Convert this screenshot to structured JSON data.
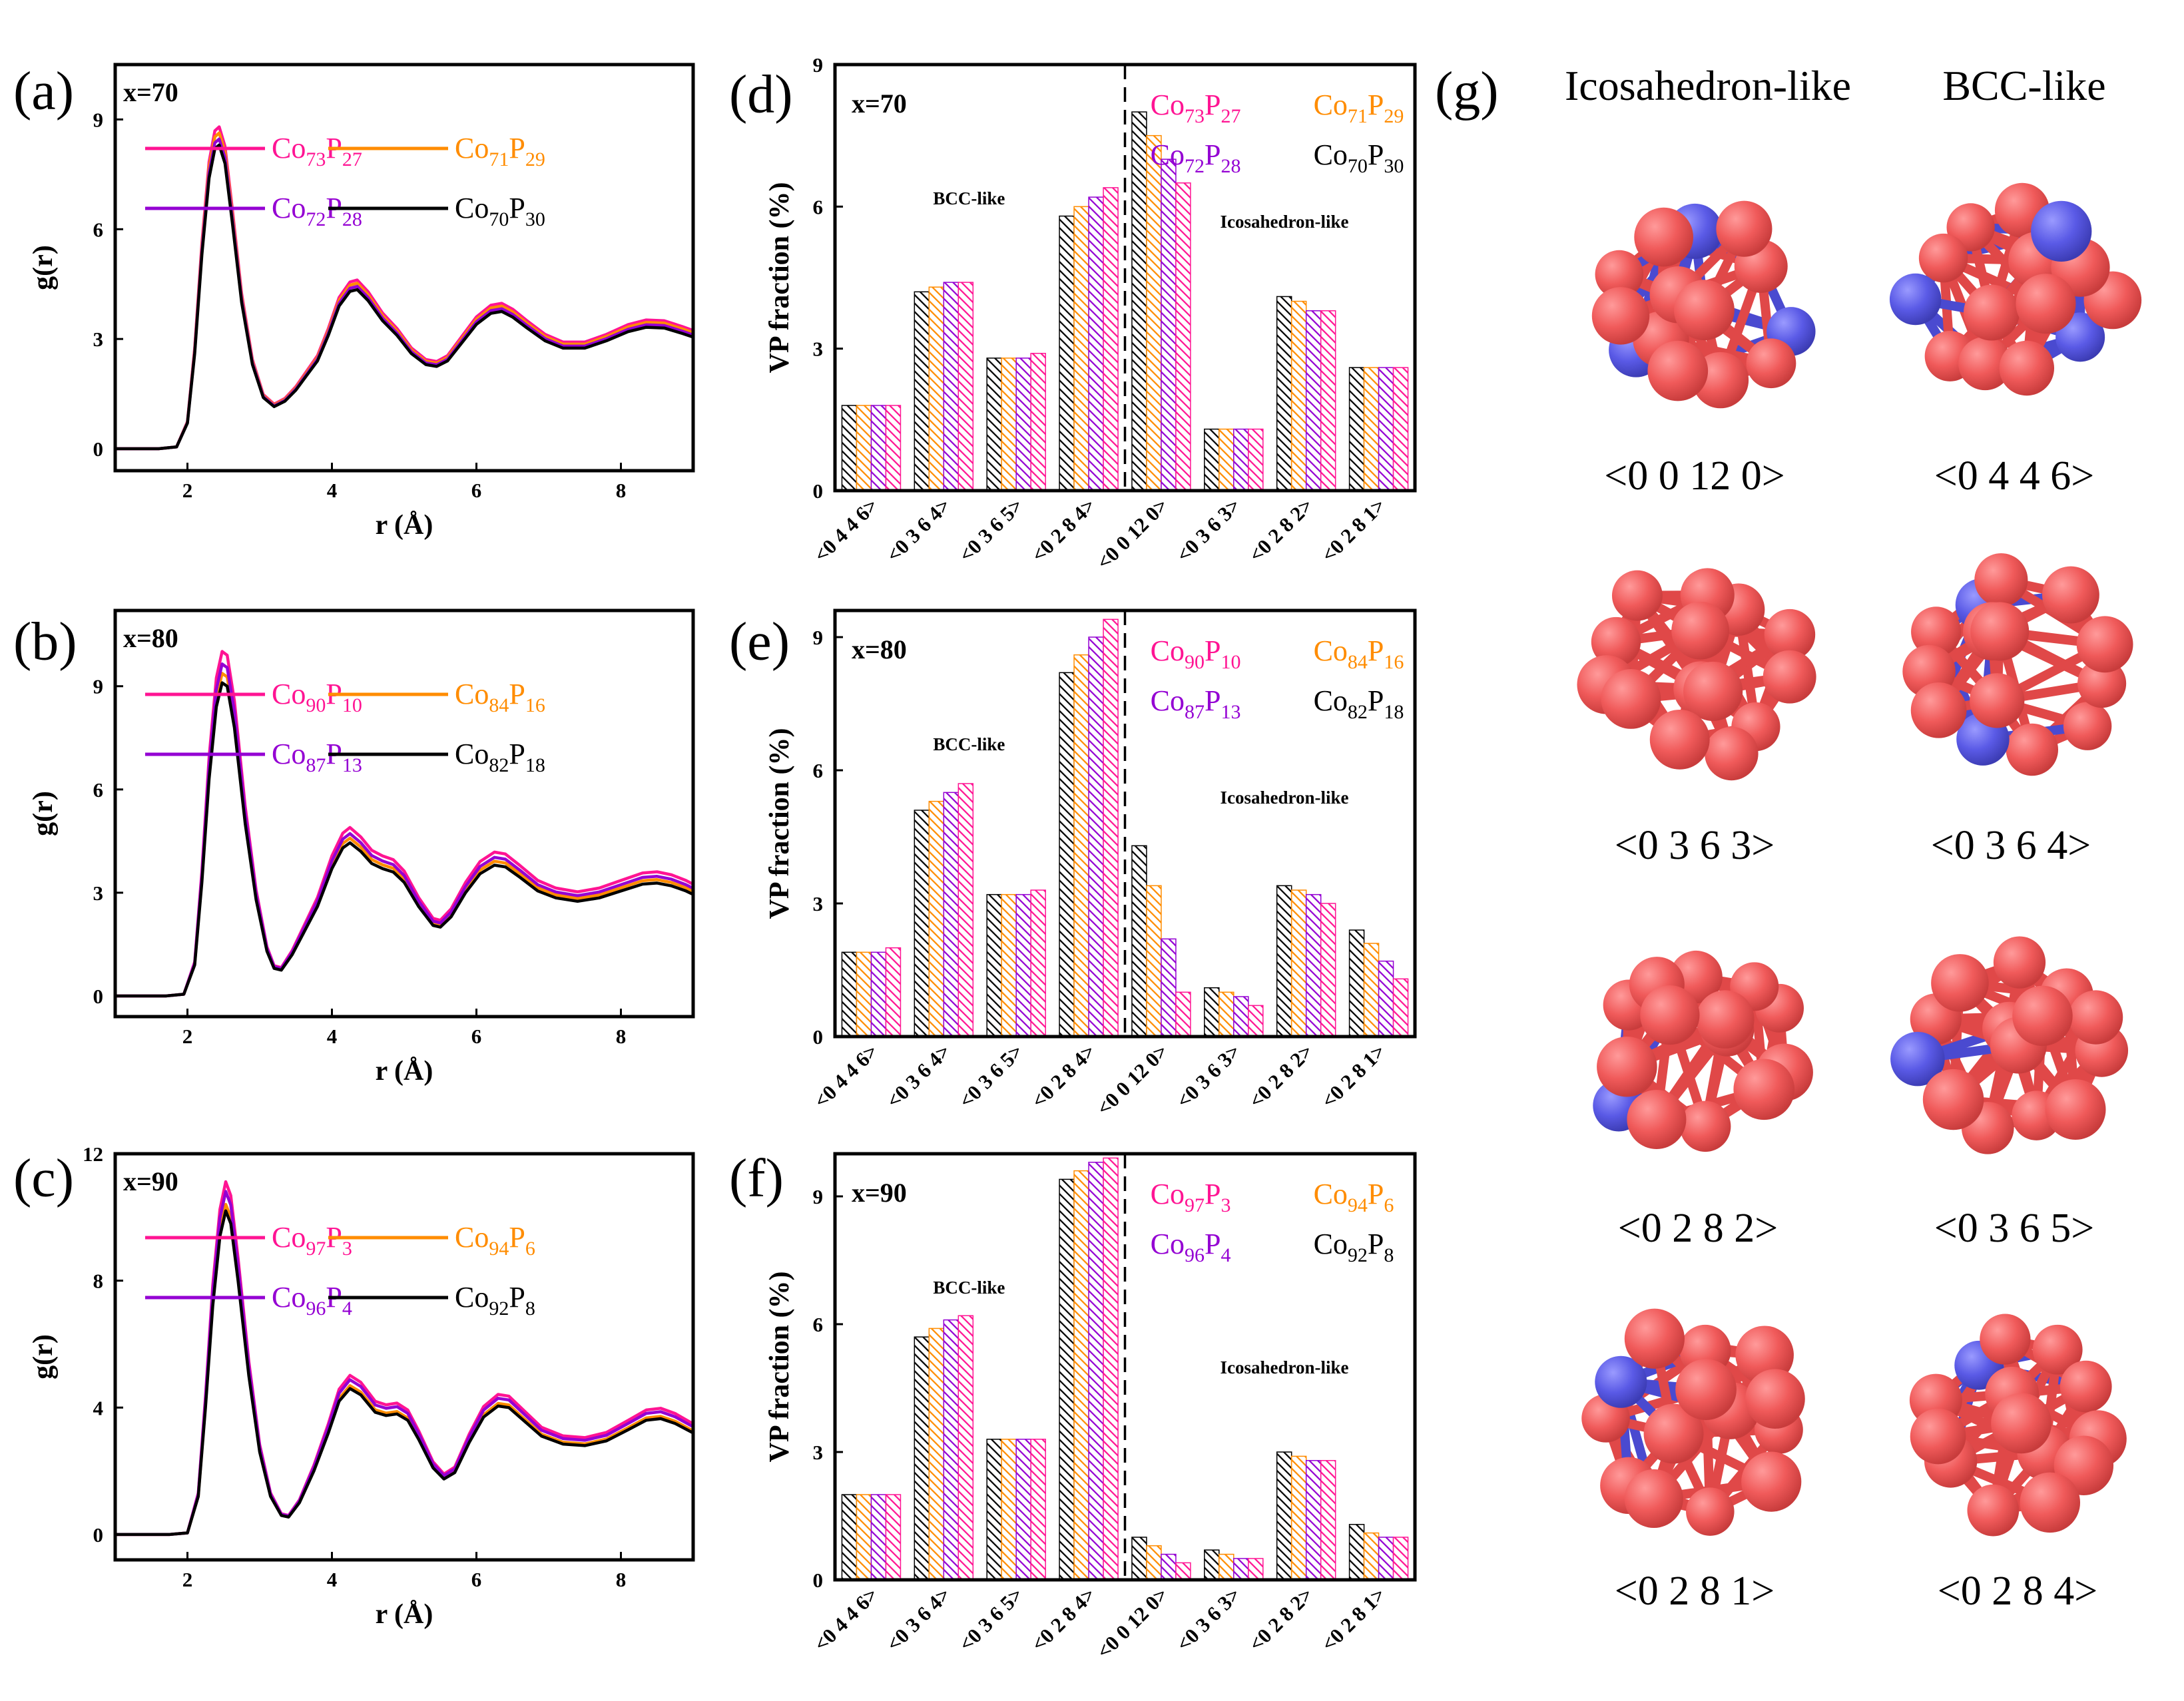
{
  "colors": {
    "pink": "#ff1493",
    "orange": "#ff8c00",
    "purple": "#9400d3",
    "black": "#000000",
    "cobalt_atom": "#f05a5a",
    "phosphorus_atom": "#5a5ae6"
  },
  "panel_g": {
    "label": "(g)",
    "col_titles": [
      "Icosahedron-like",
      "BCC-like"
    ],
    "clusters": [
      {
        "title": "<0 0 12 0>",
        "p_atoms": 3
      },
      {
        "title": "<0 4 4 6>",
        "p_atoms": 3
      },
      {
        "title": "<0 3 6 3>",
        "p_atoms": 0
      },
      {
        "title": "<0 3 6 4>",
        "p_atoms": 2
      },
      {
        "title": "<0 2 8 2>",
        "p_atoms": 1
      },
      {
        "title": "<0 3 6 5>",
        "p_atoms": 1
      },
      {
        "title": "<0 2 8 1>",
        "p_atoms": 1
      },
      {
        "title": "<0 2 8 4>",
        "p_atoms": 1
      }
    ]
  },
  "chart_data": [
    {
      "id": "a",
      "type": "line",
      "label": "(a)",
      "annotation": "x=70",
      "xlabel": "r (Å)",
      "ylabel": "g(r)",
      "xlim": [
        1,
        9
      ],
      "ylim": [
        -0.6,
        10.5
      ],
      "xticks": [
        2,
        4,
        6,
        8
      ],
      "yticks": [
        0,
        3,
        6,
        9
      ],
      "series": [
        {
          "name": "Co73P27",
          "base": "Co",
          "sub1": "73",
          "el2": "P",
          "sub2": "27",
          "color": "pink",
          "scale": 1.06
        },
        {
          "name": "Co71P29",
          "base": "Co",
          "sub1": "71",
          "el2": "P",
          "sub2": "29",
          "color": "orange",
          "scale": 1.04
        },
        {
          "name": "Co72P28",
          "base": "Co",
          "sub1": "72",
          "el2": "P",
          "sub2": "28",
          "color": "purple",
          "scale": 1.02
        },
        {
          "name": "Co70P30",
          "base": "Co",
          "sub1": "70",
          "el2": "P",
          "sub2": "30",
          "color": "black",
          "scale": 1.0
        }
      ],
      "curve": [
        [
          1,
          0
        ],
        [
          1.6,
          0
        ],
        [
          1.85,
          0.05
        ],
        [
          2.0,
          0.7
        ],
        [
          2.1,
          2.6
        ],
        [
          2.2,
          5.3
        ],
        [
          2.3,
          7.4
        ],
        [
          2.38,
          8.2
        ],
        [
          2.44,
          8.3
        ],
        [
          2.52,
          7.8
        ],
        [
          2.62,
          6.2
        ],
        [
          2.75,
          4.0
        ],
        [
          2.9,
          2.3
        ],
        [
          3.05,
          1.4
        ],
        [
          3.2,
          1.15
        ],
        [
          3.35,
          1.3
        ],
        [
          3.5,
          1.6
        ],
        [
          3.65,
          2.0
        ],
        [
          3.8,
          2.4
        ],
        [
          3.95,
          3.1
        ],
        [
          4.1,
          3.9
        ],
        [
          4.25,
          4.3
        ],
        [
          4.35,
          4.35
        ],
        [
          4.5,
          4.05
        ],
        [
          4.7,
          3.5
        ],
        [
          4.9,
          3.1
        ],
        [
          5.1,
          2.6
        ],
        [
          5.3,
          2.3
        ],
        [
          5.45,
          2.25
        ],
        [
          5.6,
          2.4
        ],
        [
          5.8,
          2.9
        ],
        [
          6.0,
          3.4
        ],
        [
          6.2,
          3.7
        ],
        [
          6.35,
          3.75
        ],
        [
          6.5,
          3.6
        ],
        [
          6.7,
          3.3
        ],
        [
          6.95,
          2.95
        ],
        [
          7.2,
          2.75
        ],
        [
          7.5,
          2.75
        ],
        [
          7.8,
          2.95
        ],
        [
          8.1,
          3.2
        ],
        [
          8.35,
          3.32
        ],
        [
          8.6,
          3.3
        ],
        [
          8.85,
          3.15
        ],
        [
          9.0,
          3.05
        ]
      ]
    },
    {
      "id": "b",
      "type": "line",
      "label": "(b)",
      "annotation": "x=80",
      "xlabel": "r (Å)",
      "ylabel": "g(r)",
      "xlim": [
        1,
        9
      ],
      "ylim": [
        -0.6,
        11.2
      ],
      "xticks": [
        2,
        4,
        6,
        8
      ],
      "yticks": [
        0,
        3,
        6,
        9
      ],
      "series": [
        {
          "name": "Co90P10",
          "base": "Co",
          "sub1": "90",
          "el2": "P",
          "sub2": "10",
          "color": "pink",
          "scale": 1.1
        },
        {
          "name": "Co84P16",
          "base": "Co",
          "sub1": "84",
          "el2": "P",
          "sub2": "16",
          "color": "orange",
          "scale": 1.03
        },
        {
          "name": "Co87P13",
          "base": "Co",
          "sub1": "87",
          "el2": "P",
          "sub2": "13",
          "color": "purple",
          "scale": 1.06
        },
        {
          "name": "Co82P18",
          "base": "Co",
          "sub1": "82",
          "el2": "P",
          "sub2": "18",
          "color": "black",
          "scale": 1.0
        }
      ],
      "curve": [
        [
          1,
          0
        ],
        [
          1.7,
          0
        ],
        [
          1.95,
          0.05
        ],
        [
          2.1,
          0.9
        ],
        [
          2.2,
          3.3
        ],
        [
          2.3,
          6.3
        ],
        [
          2.4,
          8.4
        ],
        [
          2.48,
          9.1
        ],
        [
          2.55,
          9.0
        ],
        [
          2.65,
          7.8
        ],
        [
          2.8,
          5.0
        ],
        [
          2.95,
          2.8
        ],
        [
          3.1,
          1.3
        ],
        [
          3.2,
          0.8
        ],
        [
          3.3,
          0.75
        ],
        [
          3.45,
          1.2
        ],
        [
          3.6,
          1.8
        ],
        [
          3.8,
          2.6
        ],
        [
          4.0,
          3.7
        ],
        [
          4.15,
          4.3
        ],
        [
          4.25,
          4.45
        ],
        [
          4.4,
          4.2
        ],
        [
          4.55,
          3.85
        ],
        [
          4.7,
          3.7
        ],
        [
          4.85,
          3.6
        ],
        [
          5.0,
          3.3
        ],
        [
          5.2,
          2.6
        ],
        [
          5.4,
          2.05
        ],
        [
          5.5,
          2.0
        ],
        [
          5.65,
          2.3
        ],
        [
          5.85,
          3.0
        ],
        [
          6.05,
          3.55
        ],
        [
          6.25,
          3.8
        ],
        [
          6.4,
          3.75
        ],
        [
          6.6,
          3.45
        ],
        [
          6.85,
          3.05
        ],
        [
          7.1,
          2.85
        ],
        [
          7.4,
          2.75
        ],
        [
          7.7,
          2.85
        ],
        [
          8.0,
          3.05
        ],
        [
          8.3,
          3.25
        ],
        [
          8.5,
          3.28
        ],
        [
          8.7,
          3.2
        ],
        [
          8.9,
          3.05
        ],
        [
          9.0,
          2.95
        ]
      ]
    },
    {
      "id": "c",
      "type": "line",
      "label": "(c)",
      "annotation": "x=90",
      "xlabel": "r (Å)",
      "ylabel": "g(r)",
      "xlim": [
        1,
        9
      ],
      "ylim": [
        -0.8,
        12.0
      ],
      "xticks": [
        2,
        4,
        6,
        8
      ],
      "yticks": [
        0,
        4,
        8,
        12
      ],
      "series": [
        {
          "name": "Co97P3",
          "base": "Co",
          "sub1": "97",
          "el2": "P",
          "sub2": "3",
          "color": "pink",
          "scale": 1.09
        },
        {
          "name": "Co94P6",
          "base": "Co",
          "sub1": "94",
          "el2": "P",
          "sub2": "6",
          "color": "orange",
          "scale": 1.02
        },
        {
          "name": "Co96P4",
          "base": "Co",
          "sub1": "96",
          "el2": "P",
          "sub2": "4",
          "color": "purple",
          "scale": 1.06
        },
        {
          "name": "Co92P8",
          "base": "Co",
          "sub1": "92",
          "el2": "P",
          "sub2": "8",
          "color": "black",
          "scale": 1.0
        }
      ],
      "curve": [
        [
          1,
          0
        ],
        [
          1.75,
          0
        ],
        [
          2.0,
          0.05
        ],
        [
          2.15,
          1.2
        ],
        [
          2.25,
          4.0
        ],
        [
          2.35,
          7.2
        ],
        [
          2.45,
          9.4
        ],
        [
          2.53,
          10.2
        ],
        [
          2.6,
          9.8
        ],
        [
          2.7,
          8.0
        ],
        [
          2.85,
          5.0
        ],
        [
          3.0,
          2.6
        ],
        [
          3.15,
          1.2
        ],
        [
          3.3,
          0.6
        ],
        [
          3.4,
          0.55
        ],
        [
          3.55,
          1.0
        ],
        [
          3.75,
          2.0
        ],
        [
          3.95,
          3.2
        ],
        [
          4.1,
          4.2
        ],
        [
          4.25,
          4.6
        ],
        [
          4.4,
          4.4
        ],
        [
          4.6,
          3.85
        ],
        [
          4.75,
          3.75
        ],
        [
          4.9,
          3.8
        ],
        [
          5.05,
          3.6
        ],
        [
          5.2,
          3.0
        ],
        [
          5.4,
          2.1
        ],
        [
          5.55,
          1.75
        ],
        [
          5.7,
          1.95
        ],
        [
          5.9,
          2.9
        ],
        [
          6.1,
          3.7
        ],
        [
          6.3,
          4.05
        ],
        [
          6.45,
          4.0
        ],
        [
          6.65,
          3.6
        ],
        [
          6.9,
          3.1
        ],
        [
          7.2,
          2.85
        ],
        [
          7.5,
          2.8
        ],
        [
          7.8,
          2.95
        ],
        [
          8.1,
          3.3
        ],
        [
          8.35,
          3.6
        ],
        [
          8.55,
          3.65
        ],
        [
          8.75,
          3.5
        ],
        [
          9.0,
          3.2
        ]
      ]
    },
    {
      "id": "d",
      "type": "bar",
      "label": "(d)",
      "annotation": "x=70",
      "ylabel": "VP fraction (%)",
      "ylim": [
        0,
        9
      ],
      "yticks": [
        0,
        3,
        6,
        9
      ],
      "categories": [
        "<0 4 4 6>",
        "<0 3 6 4>",
        "<0 3 6 5>",
        "<0 2 8 4>",
        "<0 0 12 0>",
        "<0 3 6 3>",
        "<0 2 8 2>",
        "<0 2 8 1>"
      ],
      "region_labels": [
        "BCC-like",
        "Icosahedron-like"
      ],
      "legend": [
        {
          "base": "Co",
          "sub1": "73",
          "el2": "P",
          "sub2": "27",
          "color": "pink"
        },
        {
          "base": "Co",
          "sub1": "71",
          "el2": "P",
          "sub2": "29",
          "color": "orange"
        },
        {
          "base": "Co",
          "sub1": "72",
          "el2": "P",
          "sub2": "28",
          "color": "purple"
        },
        {
          "base": "Co",
          "sub1": "70",
          "el2": "P",
          "sub2": "30",
          "color": "black"
        }
      ],
      "series": [
        {
          "name": "Co70P30",
          "color": "black",
          "values": [
            1.8,
            4.2,
            2.8,
            5.8,
            8.0,
            1.3,
            4.1,
            2.6
          ]
        },
        {
          "name": "Co71P29",
          "color": "orange",
          "values": [
            1.8,
            4.3,
            2.8,
            6.0,
            7.5,
            1.3,
            4.0,
            2.6
          ]
        },
        {
          "name": "Co72P28",
          "color": "purple",
          "values": [
            1.8,
            4.4,
            2.8,
            6.2,
            7.0,
            1.3,
            3.8,
            2.6
          ]
        },
        {
          "name": "Co73P27",
          "color": "pink",
          "values": [
            1.8,
            4.4,
            2.9,
            6.4,
            6.5,
            1.3,
            3.8,
            2.6
          ]
        }
      ]
    },
    {
      "id": "e",
      "type": "bar",
      "label": "(e)",
      "annotation": "x=80",
      "ylabel": "VP fraction (%)",
      "ylim": [
        0,
        9.6
      ],
      "yticks": [
        0,
        3,
        6,
        9
      ],
      "categories": [
        "<0 4 4 6>",
        "<0 3 6 4>",
        "<0 3 6 5>",
        "<0 2 8 4>",
        "<0 0 12 0>",
        "<0 3 6 3>",
        "<0 2 8 2>",
        "<0 2 8 1>"
      ],
      "region_labels": [
        "BCC-like",
        "Icosahedron-like"
      ],
      "legend": [
        {
          "base": "Co",
          "sub1": "90",
          "el2": "P",
          "sub2": "10",
          "color": "pink"
        },
        {
          "base": "Co",
          "sub1": "84",
          "el2": "P",
          "sub2": "16",
          "color": "orange"
        },
        {
          "base": "Co",
          "sub1": "87",
          "el2": "P",
          "sub2": "13",
          "color": "purple"
        },
        {
          "base": "Co",
          "sub1": "82",
          "el2": "P",
          "sub2": "18",
          "color": "black"
        }
      ],
      "series": [
        {
          "name": "Co82P18",
          "color": "black",
          "values": [
            1.9,
            5.1,
            3.2,
            8.2,
            4.3,
            1.1,
            3.4,
            2.4
          ]
        },
        {
          "name": "Co84P16",
          "color": "orange",
          "values": [
            1.9,
            5.3,
            3.2,
            8.6,
            3.4,
            1.0,
            3.3,
            2.1
          ]
        },
        {
          "name": "Co87P13",
          "color": "purple",
          "values": [
            1.9,
            5.5,
            3.2,
            9.0,
            2.2,
            0.9,
            3.2,
            1.7
          ]
        },
        {
          "name": "Co90P10",
          "color": "pink",
          "values": [
            2.0,
            5.7,
            3.3,
            9.4,
            1.0,
            0.7,
            3.0,
            1.3
          ]
        }
      ]
    },
    {
      "id": "f",
      "type": "bar",
      "label": "(f)",
      "annotation": "x=90",
      "ylabel": "VP fraction (%)",
      "ylim": [
        0,
        10
      ],
      "yticks": [
        0,
        3,
        6,
        9
      ],
      "categories": [
        "<0 4 4 6>",
        "<0 3 6 4>",
        "<0 3 6 5>",
        "<0 2 8 4>",
        "<0 0 12 0>",
        "<0 3 6 3>",
        "<0 2 8 2>",
        "<0 2 8 1>"
      ],
      "region_labels": [
        "BCC-like",
        "Icosahedron-like"
      ],
      "legend": [
        {
          "base": "Co",
          "sub1": "97",
          "el2": "P",
          "sub2": "3",
          "color": "pink"
        },
        {
          "base": "Co",
          "sub1": "94",
          "el2": "P",
          "sub2": "6",
          "color": "orange"
        },
        {
          "base": "Co",
          "sub1": "96",
          "el2": "P",
          "sub2": "4",
          "color": "purple"
        },
        {
          "base": "Co",
          "sub1": "92",
          "el2": "P",
          "sub2": "8",
          "color": "black"
        }
      ],
      "series": [
        {
          "name": "Co92P8",
          "color": "black",
          "values": [
            2.0,
            5.7,
            3.3,
            9.4,
            1.0,
            0.7,
            3.0,
            1.3
          ]
        },
        {
          "name": "Co94P6",
          "color": "orange",
          "values": [
            2.0,
            5.9,
            3.3,
            9.6,
            0.8,
            0.6,
            2.9,
            1.1
          ]
        },
        {
          "name": "Co96P4",
          "color": "purple",
          "values": [
            2.0,
            6.1,
            3.3,
            9.8,
            0.6,
            0.5,
            2.8,
            1.0
          ]
        },
        {
          "name": "Co97P3",
          "color": "pink",
          "values": [
            2.0,
            6.2,
            3.3,
            9.9,
            0.4,
            0.5,
            2.8,
            1.0
          ]
        }
      ]
    }
  ]
}
